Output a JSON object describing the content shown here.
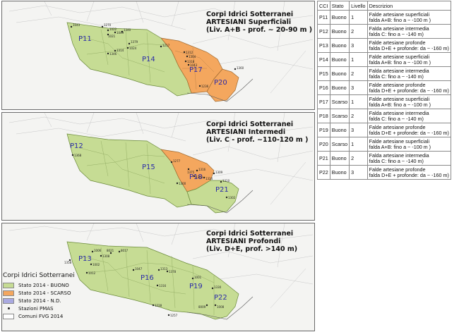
{
  "legend": {
    "title": "Corpi Idrici Sotterranei",
    "items": [
      {
        "label": "Stato 2014 - BUONO",
        "color": "#c6dc94"
      },
      {
        "label": "Stato 2014 - SCARSO",
        "color": "#f4a75e"
      },
      {
        "label": "Stato 2014 - N.D.",
        "color": "#a9a9e0"
      },
      {
        "label": "Stazioni PMAS",
        "kind": "point"
      },
      {
        "label": "Comuni FVG 2014",
        "color": "#ffffff"
      }
    ]
  },
  "maps": [
    {
      "title_lines": [
        "Corpi Idrici Sotterranei",
        "ARTESIANI Superficiali",
        "(Liv. A+B - prof. ~ 20-90 m )"
      ],
      "zones": [
        {
          "label": "P11",
          "status": "Buono"
        },
        {
          "label": "P14",
          "status": "Buono"
        },
        {
          "label": "P17",
          "status": "Scarso"
        },
        {
          "label": "P20",
          "status": "Scarso"
        }
      ],
      "stations": [
        "1043",
        "1270",
        "1022",
        "1049",
        "1021",
        "1340",
        "1379",
        "1024",
        "1314",
        "1346",
        "1217",
        "1312",
        "1304",
        "1318",
        "1043",
        "1236",
        "1360"
      ]
    },
    {
      "title_lines": [
        "Corpi Idrici Sotterranei",
        "ARTESIANI Intermedi",
        "(Liv. C - prof. ~110-120 m )"
      ],
      "zones": [
        {
          "label": "P12",
          "status": "Buono"
        },
        {
          "label": "P15",
          "status": "Buono"
        },
        {
          "label": "P18",
          "status": "Scarso"
        },
        {
          "label": "P21",
          "status": "Buono"
        }
      ],
      "stations": [
        "1368",
        "1277",
        "1375",
        "1316",
        "1303",
        "1324",
        "1309",
        "1310",
        "1300",
        "1302"
      ]
    },
    {
      "title_lines": [
        "Corpi Idrici Sotterranei",
        "ARTESIANI Profondi",
        "(Liv. D+E, prof. >140 m)"
      ],
      "zones": [
        {
          "label": "P13",
          "status": "Buono"
        },
        {
          "label": "P16",
          "status": "Buono"
        },
        {
          "label": "P19",
          "status": "Buono"
        },
        {
          "label": "P22",
          "status": "Buono"
        }
      ],
      "stations": [
        "1358",
        "1006",
        "1308",
        "8021",
        "8017",
        "1002",
        "1012",
        "1047",
        "1316",
        "1313",
        "1378",
        "1001",
        "1330",
        "8009",
        "1008",
        "1257",
        "1228"
      ]
    }
  ],
  "table": {
    "headers": [
      "CCI",
      "Stato",
      "Livello",
      "Descrizion"
    ],
    "rows": [
      {
        "cci": "P11",
        "stato": "Buono",
        "livello": "1",
        "desc1": "Falde artesiane superficiali",
        "desc2": "falda A+B: fino a ~ -100 m )"
      },
      {
        "cci": "P12",
        "stato": "Buono",
        "livello": "2",
        "desc1": "Falda artesiane intermedia",
        "desc2": "falda C: fino a ~ -140 m)"
      },
      {
        "cci": "P13",
        "stato": "Buono",
        "livello": "3",
        "desc1": "Falde artesiane profonde",
        "desc2": "falda D+E + profonde: da ~ -160 m)"
      },
      {
        "cci": "P14",
        "stato": "Buono",
        "livello": "1",
        "desc1": "Falde artesiane superficiali",
        "desc2": "falda A+B: fino a ~ -100 m )"
      },
      {
        "cci": "P15",
        "stato": "Buono",
        "livello": "2",
        "desc1": "Falda artesiane intermedia",
        "desc2": "falda C: fino a ~ -140 m)"
      },
      {
        "cci": "P16",
        "stato": "Buono",
        "livello": "3",
        "desc1": "Falde artesiane profonde",
        "desc2": "falda D+E + profonde: da ~ -160 m)"
      },
      {
        "cci": "P17",
        "stato": "Scarso",
        "livello": "1",
        "desc1": "Falde artesiane superficiali",
        "desc2": "falda A+B: fino a ~ -100 m )"
      },
      {
        "cci": "P18",
        "stato": "Scarso",
        "livello": "2",
        "desc1": "Falda artesiane intermedia",
        "desc2": "falda C: fino a ~ -140 m)"
      },
      {
        "cci": "P19",
        "stato": "Buono",
        "livello": "3",
        "desc1": "Falde artesiane profonde",
        "desc2": "falda D+E + profonde: da ~ -160 m)"
      },
      {
        "cci": "P20",
        "stato": "Scarso",
        "livello": "1",
        "desc1": "Falde artesiane superficiali",
        "desc2": "falda A+B: fino a ~ -100 m )"
      },
      {
        "cci": "P21",
        "stato": "Buono",
        "livello": "2",
        "desc1": "Falda artesiane intermedia",
        "desc2": "falda C: fino a ~ -140 m)"
      },
      {
        "cci": "P22",
        "stato": "Buono",
        "livello": "3",
        "desc1": "Falde artesiane profonde",
        "desc2": "falda D+E + profonde: da ~ -160 m)"
      }
    ]
  }
}
